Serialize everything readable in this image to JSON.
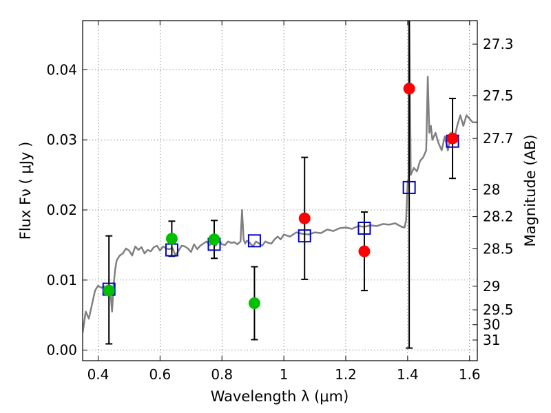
{
  "chart_data": {
    "type": "scatter",
    "xlabel": "Wavelength  λ (μm)",
    "ylabel": "Flux  Fν  ( μJy )",
    "y2label": "Magnitude (AB)",
    "xlim": [
      0.35,
      1.625
    ],
    "ylim": [
      -0.0015,
      0.047
    ],
    "x_ticks": [
      0.4,
      0.6,
      0.8,
      1.0,
      1.2,
      1.4,
      1.6
    ],
    "x_tick_labels": [
      "0.4",
      "0.6",
      "0.8",
      "1",
      "1.2",
      "1.4",
      "1.6"
    ],
    "y_ticks": [
      0.0,
      0.01,
      0.02,
      0.03,
      0.04
    ],
    "y_tick_labels": [
      "0.00",
      "0.01",
      "0.02",
      "0.03",
      "0.04"
    ],
    "mag_ticks": [
      27.3,
      27.5,
      27.7,
      28,
      28.2,
      28.5,
      29,
      29.5,
      30,
      31
    ],
    "mag_tick_labels": [
      "27.3",
      "27.5",
      "27.7",
      "28",
      "28.2",
      "28.5",
      "29",
      "29.5",
      "30",
      "31"
    ],
    "grid": true,
    "colors": {
      "green": "#00c000",
      "red": "#ff0000",
      "model": "#808080",
      "box": "#0000cc",
      "error": "#000000"
    },
    "model_spectrum": {
      "name": "",
      "x": [
        0.35,
        0.36,
        0.37,
        0.38,
        0.39,
        0.4,
        0.41,
        0.42,
        0.43,
        0.44,
        0.445,
        0.45,
        0.455,
        0.46,
        0.47,
        0.48,
        0.49,
        0.5,
        0.51,
        0.52,
        0.53,
        0.54,
        0.55,
        0.56,
        0.57,
        0.58,
        0.59,
        0.6,
        0.61,
        0.62,
        0.63,
        0.64,
        0.65,
        0.66,
        0.67,
        0.68,
        0.69,
        0.7,
        0.71,
        0.72,
        0.73,
        0.74,
        0.75,
        0.76,
        0.77,
        0.78,
        0.79,
        0.8,
        0.81,
        0.82,
        0.83,
        0.84,
        0.85,
        0.86,
        0.865,
        0.87,
        0.875,
        0.88,
        0.89,
        0.9,
        0.91,
        0.92,
        0.93,
        0.94,
        0.95,
        0.96,
        0.97,
        0.98,
        0.99,
        1.0,
        1.02,
        1.04,
        1.06,
        1.08,
        1.1,
        1.12,
        1.14,
        1.16,
        1.18,
        1.2,
        1.22,
        1.24,
        1.26,
        1.28,
        1.3,
        1.32,
        1.34,
        1.36,
        1.38,
        1.39,
        1.395,
        1.4,
        1.403,
        1.405,
        1.41,
        1.42,
        1.43,
        1.44,
        1.45,
        1.46,
        1.465,
        1.47,
        1.475,
        1.48,
        1.49,
        1.5,
        1.51,
        1.52,
        1.53,
        1.54,
        1.55,
        1.56,
        1.57,
        1.58,
        1.59,
        1.6,
        1.61,
        1.625
      ],
      "y": [
        0.0025,
        0.0055,
        0.0045,
        0.0065,
        0.0085,
        0.0092,
        0.0089,
        0.0091,
        0.0088,
        0.0083,
        0.0055,
        0.0092,
        0.0115,
        0.0128,
        0.0135,
        0.0138,
        0.0145,
        0.0142,
        0.0135,
        0.0148,
        0.0143,
        0.0147,
        0.0138,
        0.0143,
        0.0141,
        0.0147,
        0.0149,
        0.0142,
        0.0148,
        0.0145,
        0.0144,
        0.0146,
        0.0135,
        0.0142,
        0.0149,
        0.0148,
        0.0145,
        0.014,
        0.0151,
        0.0144,
        0.0149,
        0.0152,
        0.0155,
        0.015,
        0.0152,
        0.0149,
        0.0157,
        0.0151,
        0.015,
        0.0155,
        0.0153,
        0.0154,
        0.0151,
        0.0155,
        0.02,
        0.0158,
        0.0152,
        0.0156,
        0.0153,
        0.0148,
        0.0155,
        0.0152,
        0.0149,
        0.0155,
        0.0153,
        0.0152,
        0.0158,
        0.0162,
        0.0158,
        0.0165,
        0.0162,
        0.0168,
        0.0166,
        0.0165,
        0.0168,
        0.0167,
        0.0172,
        0.017,
        0.0174,
        0.0175,
        0.0173,
        0.0177,
        0.0176,
        0.0178,
        0.0177,
        0.018,
        0.0179,
        0.0181,
        0.0176,
        0.0175,
        0.0185,
        0.024,
        0.0245,
        0.05,
        0.025,
        0.026,
        0.0255,
        0.027,
        0.0275,
        0.0285,
        0.039,
        0.031,
        0.032,
        0.03,
        0.031,
        0.0295,
        0.0285,
        0.0305,
        0.0285,
        0.031,
        0.03,
        0.032,
        0.0335,
        0.032,
        0.0335,
        0.033,
        0.0325,
        0.0325
      ]
    },
    "series": [
      {
        "name": "",
        "color": "green",
        "marker": "circle",
        "x": [
          0.435,
          0.638,
          0.775,
          0.905
        ],
        "y": [
          0.0085,
          0.0159,
          0.0158,
          0.0067
        ],
        "err_low": [
          0.0076,
          0.0025,
          0.0027,
          0.0052
        ],
        "err_high": [
          0.0078,
          0.0025,
          0.0027,
          0.0052
        ]
      },
      {
        "name": "",
        "color": "red",
        "marker": "circle",
        "x": [
          1.067,
          1.26,
          1.405,
          1.545
        ],
        "y": [
          0.0188,
          0.0141,
          0.0373,
          0.0302
        ],
        "err_low": [
          0.0087,
          0.0056,
          0.037,
          0.0057
        ],
        "err_high": [
          0.0087,
          0.0056,
          0.037,
          0.0057
        ]
      },
      {
        "name": "",
        "color": "box",
        "marker": "square-open",
        "x": [
          0.435,
          0.638,
          0.775,
          0.905,
          1.067,
          1.26,
          1.405,
          1.545
        ],
        "y": [
          0.0087,
          0.0143,
          0.0151,
          0.0156,
          0.0163,
          0.0174,
          0.0232,
          0.0298
        ]
      }
    ]
  }
}
